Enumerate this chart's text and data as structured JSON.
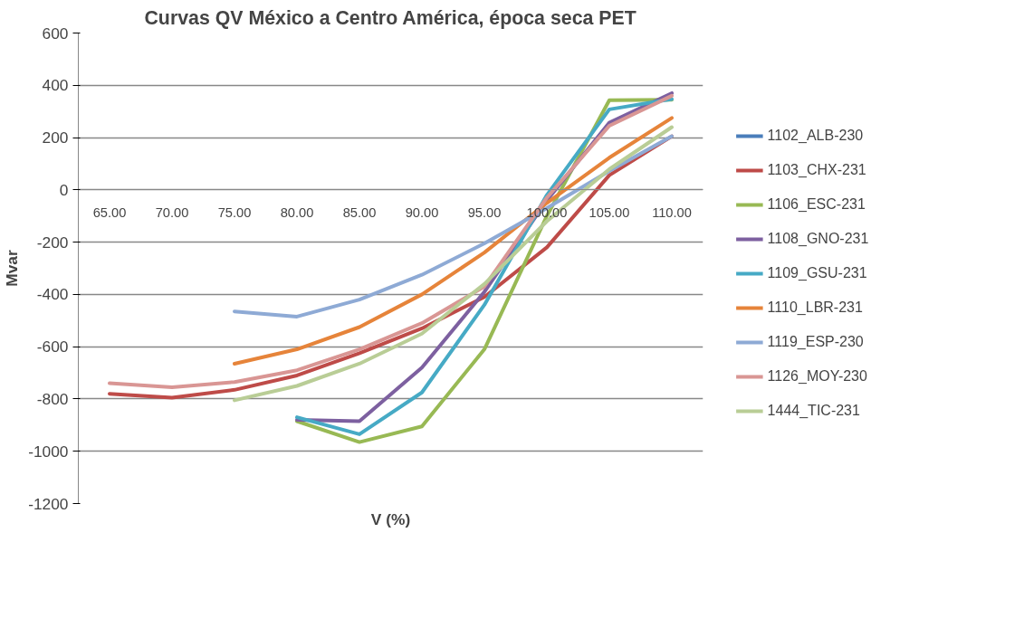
{
  "chart_data": {
    "type": "line",
    "title": "Curvas QV México a Centro América, época seca PET",
    "xlabel": "V (%)",
    "ylabel": "Mvar",
    "categories": [
      "65.00",
      "70.00",
      "75.00",
      "80.00",
      "85.00",
      "90.00",
      "95.00",
      "100.00",
      "105.00",
      "110.00"
    ],
    "ylim": [
      -1200,
      600
    ],
    "yticks": [
      -1200,
      -1000,
      -800,
      -600,
      -400,
      -200,
      0,
      200,
      400,
      600
    ],
    "grid": "y",
    "legend": "right",
    "marker": "none",
    "line_style": "solid",
    "series": [
      {
        "name": "1102_ALB-230",
        "color": "#4a7ebb",
        "values": [
          null,
          null,
          null,
          null,
          null,
          null,
          null,
          null,
          null,
          null
        ]
      },
      {
        "name": "1103_CHX-231",
        "color": "#be4b48",
        "values": [
          -780,
          -795,
          -765,
          -710,
          -625,
          -530,
          -410,
          -220,
          56,
          205
        ]
      },
      {
        "name": "1106_ESC-231",
        "color": "#98b954",
        "values": [
          null,
          null,
          null,
          -885,
          -965,
          -905,
          -610,
          -100,
          343,
          345
        ]
      },
      {
        "name": "1108_GNO-231",
        "color": "#7d60a0",
        "values": [
          null,
          null,
          null,
          -880,
          -885,
          -680,
          -390,
          -40,
          257,
          370
        ]
      },
      {
        "name": "1109_GSU-231",
        "color": "#46aac5",
        "values": [
          null,
          null,
          null,
          -870,
          -935,
          -775,
          -440,
          -20,
          308,
          347
        ]
      },
      {
        "name": "1110_LBR-231",
        "color": "#e6843a",
        "values": [
          null,
          null,
          -665,
          -610,
          -525,
          -400,
          -240,
          -50,
          123,
          275
        ]
      },
      {
        "name": "1119_ESP-230",
        "color": "#8eaad5",
        "values": [
          null,
          null,
          -465,
          -485,
          -420,
          -325,
          -205,
          -70,
          72,
          205
        ]
      },
      {
        "name": "1126_MOY-230",
        "color": "#d99694",
        "values": [
          -740,
          -755,
          -735,
          -690,
          -610,
          -510,
          -370,
          -30,
          245,
          360
        ]
      },
      {
        "name": "1444_TIC-231",
        "color": "#b9cd96",
        "values": [
          null,
          null,
          -805,
          -750,
          -665,
          -550,
          -360,
          -120,
          79,
          240
        ]
      }
    ]
  }
}
